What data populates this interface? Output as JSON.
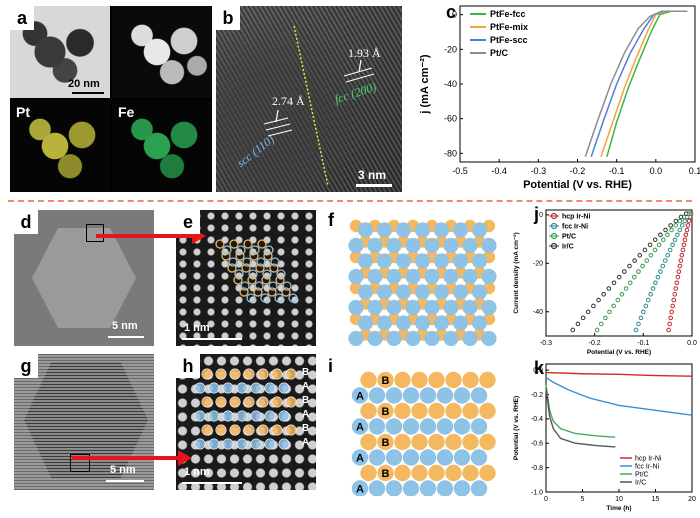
{
  "panel_labels": {
    "a": "a",
    "b": "b",
    "c": "c",
    "d": "d",
    "e": "e",
    "f": "f",
    "g": "g",
    "h": "h",
    "i": "i",
    "j": "j",
    "k": "k"
  },
  "panel_a": {
    "scale": "20 nm",
    "map1": "Pt",
    "map2": "Fe",
    "map1_color": "#c9c43a",
    "map2_color": "#2fb35a"
  },
  "panel_b": {
    "d1": "1.93 Å",
    "d2": "2.74 Å",
    "phase1": "fcc (200)",
    "phase2": "scc (110)",
    "scale": "3 nm"
  },
  "panel_d": {
    "scale": "5 nm"
  },
  "panel_e": {
    "scale": "1 nm"
  },
  "panel_g": {
    "scale": "5 nm"
  },
  "panel_h": {
    "scale": "1 nm",
    "stack_labels": [
      "B",
      "A",
      "B",
      "A",
      "B",
      "A"
    ]
  },
  "panel_i": {
    "stack_labels": [
      "B",
      "A",
      "B",
      "A",
      "B",
      "A",
      "B",
      "A"
    ]
  },
  "colors": {
    "atom_blue": "#8ec3e6",
    "atom_orange": "#f4b860",
    "divider": "#f08a6a",
    "arrow": "#e8141a"
  },
  "chart_data": [
    {
      "id": "c",
      "type": "line",
      "xlabel": "Potential (V vs. RHE)",
      "ylabel": "j (mA cm⁻²)",
      "xlim": [
        -0.5,
        0.1
      ],
      "ylim": [
        -85,
        5
      ],
      "x_ticks": [
        -0.5,
        -0.4,
        -0.3,
        -0.2,
        -0.1,
        0.0,
        0.1
      ],
      "x_tick_labels": [
        "-0.5",
        "-0.4",
        "-0.3",
        "-0.2",
        "-0.1",
        "0.0",
        "0.1"
      ],
      "y_ticks": [
        0,
        -20,
        -40,
        -60,
        -80
      ],
      "y_tick_labels": [
        "0",
        "-20",
        "-40",
        "-60",
        "-80"
      ],
      "legend_position": "top-left",
      "series": [
        {
          "name": "PtFe-fcc",
          "color": "#3cb44b",
          "x": [
            -0.125,
            -0.1,
            -0.07,
            -0.04,
            -0.01,
            0.01,
            0.04,
            0.08
          ],
          "y": [
            -82,
            -62,
            -42,
            -25,
            -9,
            0,
            2,
            2
          ]
        },
        {
          "name": "PtFe-mix",
          "color": "#f4a23c",
          "x": [
            -0.14,
            -0.11,
            -0.08,
            -0.05,
            -0.02,
            0.0,
            0.03,
            0.08
          ],
          "y": [
            -82,
            -62,
            -42,
            -25,
            -9,
            0,
            2,
            2
          ]
        },
        {
          "name": "PtFe-scc",
          "color": "#4a7fd4",
          "x": [
            -0.165,
            -0.135,
            -0.1,
            -0.065,
            -0.03,
            -0.005,
            0.02,
            0.08
          ],
          "y": [
            -82,
            -62,
            -40,
            -22,
            -8,
            0,
            2,
            2
          ]
        },
        {
          "name": "Pt/C",
          "color": "#8c8c8c",
          "x": [
            -0.18,
            -0.15,
            -0.115,
            -0.08,
            -0.045,
            -0.015,
            0.015,
            0.08
          ],
          "y": [
            -82,
            -62,
            -40,
            -22,
            -8,
            -1,
            2,
            2
          ]
        }
      ]
    },
    {
      "id": "j",
      "type": "scatter",
      "xlabel": "Potential (V vs. RHE)",
      "ylabel": "Current density (mA cm⁻²)",
      "xlim": [
        -0.3,
        0.0
      ],
      "ylim": [
        -50,
        2
      ],
      "x_ticks": [
        -0.3,
        -0.2,
        -0.1,
        0.0
      ],
      "x_tick_labels": [
        "-0.3",
        "-0.2",
        "-0.1",
        "0.0"
      ],
      "y_ticks": [
        0,
        -20,
        -40
      ],
      "y_tick_labels": [
        "0",
        "-20",
        "-40"
      ],
      "legend_position": "top-left",
      "series": [
        {
          "name": "hcp Ir-Ni",
          "color": "#c0282d",
          "x0": -0.002,
          "x1": -0.048
        },
        {
          "name": "fcc Ir-Ni",
          "color": "#2a8a8a",
          "x0": -0.005,
          "x1": -0.115
        },
        {
          "name": "Pt/C",
          "color": "#3a9a4a",
          "x0": -0.008,
          "x1": -0.195
        },
        {
          "name": "Ir/C",
          "color": "#333333",
          "x0": -0.012,
          "x1": -0.245
        }
      ]
    },
    {
      "id": "k",
      "type": "line",
      "xlabel": "Time (h)",
      "ylabel": "Potential (V vs. RHE)",
      "xlim": [
        0,
        20
      ],
      "ylim": [
        -1.0,
        0.05
      ],
      "x_ticks": [
        0,
        5,
        10,
        15,
        20
      ],
      "x_tick_labels": [
        "0",
        "5",
        "10",
        "15",
        "20"
      ],
      "y_ticks": [
        0.0,
        -0.2,
        -0.4,
        -0.6,
        -0.8,
        -1.0
      ],
      "y_tick_labels": [
        "0.0",
        "-0.2",
        "-0.4",
        "-0.6",
        "-0.8",
        "-1.0"
      ],
      "legend_position": "bottom-right",
      "series": [
        {
          "name": "hcp Ir-Ni",
          "color": "#d62828",
          "x": [
            0,
            5,
            10,
            15,
            20
          ],
          "y": [
            -0.02,
            -0.03,
            -0.035,
            -0.045,
            -0.05
          ]
        },
        {
          "name": "fcc Ir-Ni",
          "color": "#3a8fd0",
          "x": [
            0,
            1,
            3,
            6,
            10,
            15,
            20
          ],
          "y": [
            -0.06,
            -0.1,
            -0.16,
            -0.23,
            -0.29,
            -0.33,
            -0.37
          ]
        },
        {
          "name": "Pt/C",
          "color": "#4aa860",
          "x": [
            0,
            0.5,
            1,
            2,
            4,
            7,
            9.5
          ],
          "y": [
            -0.12,
            -0.33,
            -0.42,
            -0.48,
            -0.52,
            -0.54,
            -0.55
          ]
        },
        {
          "name": "Ir/C",
          "color": "#555555",
          "x": [
            0,
            0.5,
            1,
            2,
            4,
            7,
            9.5
          ],
          "y": [
            -0.15,
            -0.38,
            -0.48,
            -0.56,
            -0.6,
            -0.62,
            -0.63
          ]
        }
      ]
    }
  ]
}
